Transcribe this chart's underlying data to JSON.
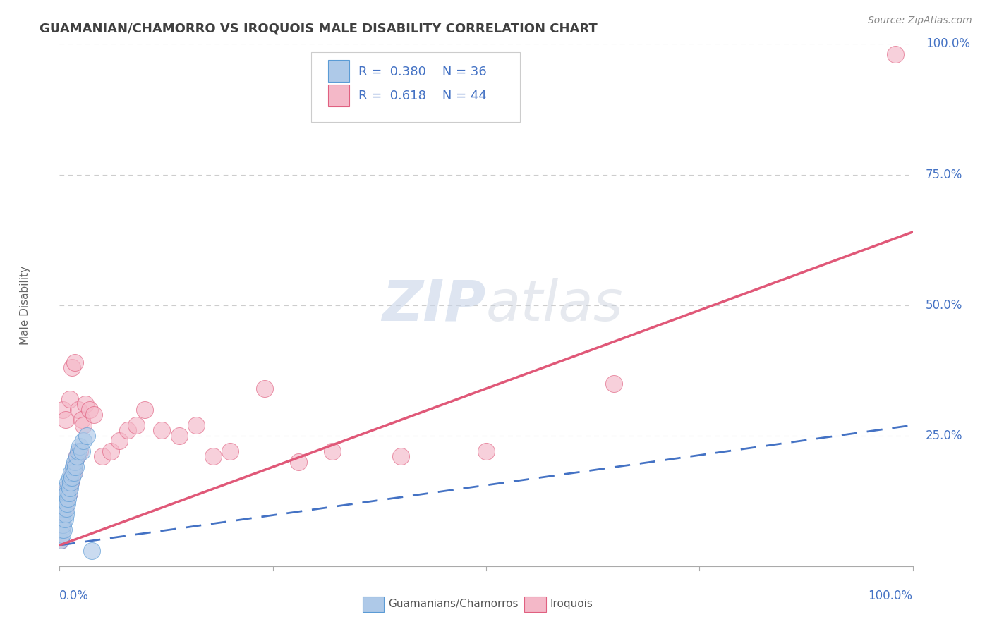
{
  "title": "GUAMANIAN/CHAMORRO VS IROQUOIS MALE DISABILITY CORRELATION CHART",
  "source_text": "Source: ZipAtlas.com",
  "ylabel": "Male Disability",
  "ylabel_right_ticks": [
    "100.0%",
    "75.0%",
    "50.0%",
    "25.0%"
  ],
  "ylabel_right_vals": [
    1.0,
    0.75,
    0.5,
    0.25
  ],
  "legend_labels": [
    "Guamanians/Chamorros",
    "Iroquois"
  ],
  "guamanian_color": "#aec9e8",
  "guamanian_edge_color": "#5b9bd5",
  "iroquois_color": "#f4b8c8",
  "iroquois_edge_color": "#e06080",
  "guamanian_line_color": "#4472c4",
  "iroquois_line_color": "#e05878",
  "background_color": "#ffffff",
  "grid_color": "#b8b8b8",
  "title_color": "#404040",
  "axis_label_color": "#4472c4",
  "watermark_text": "ZIPatlas",
  "watermark_color": "#dde5f0",
  "guamanian_x": [
    0.001,
    0.002,
    0.002,
    0.003,
    0.003,
    0.004,
    0.004,
    0.005,
    0.005,
    0.006,
    0.006,
    0.007,
    0.007,
    0.008,
    0.008,
    0.009,
    0.009,
    0.01,
    0.01,
    0.011,
    0.012,
    0.012,
    0.013,
    0.014,
    0.015,
    0.016,
    0.017,
    0.018,
    0.019,
    0.02,
    0.022,
    0.024,
    0.026,
    0.028,
    0.032,
    0.038
  ],
  "guamanian_y": [
    0.05,
    0.07,
    0.09,
    0.06,
    0.1,
    0.08,
    0.11,
    0.07,
    0.12,
    0.09,
    0.13,
    0.1,
    0.14,
    0.11,
    0.15,
    0.12,
    0.14,
    0.13,
    0.16,
    0.14,
    0.15,
    0.17,
    0.16,
    0.18,
    0.17,
    0.19,
    0.18,
    0.2,
    0.19,
    0.21,
    0.22,
    0.23,
    0.22,
    0.24,
    0.25,
    0.03
  ],
  "iroquois_x": [
    0.001,
    0.002,
    0.003,
    0.004,
    0.005,
    0.006,
    0.007,
    0.008,
    0.009,
    0.01,
    0.011,
    0.012,
    0.013,
    0.014,
    0.015,
    0.016,
    0.017,
    0.018,
    0.02,
    0.022,
    0.024,
    0.026,
    0.028,
    0.03,
    0.035,
    0.04,
    0.05,
    0.06,
    0.07,
    0.08,
    0.09,
    0.1,
    0.12,
    0.14,
    0.16,
    0.18,
    0.2,
    0.24,
    0.28,
    0.32,
    0.4,
    0.5,
    0.65,
    0.98
  ],
  "iroquois_y": [
    0.05,
    0.08,
    0.1,
    0.3,
    0.12,
    0.11,
    0.28,
    0.13,
    0.14,
    0.15,
    0.14,
    0.32,
    0.16,
    0.17,
    0.38,
    0.18,
    0.19,
    0.39,
    0.21,
    0.3,
    0.22,
    0.28,
    0.27,
    0.31,
    0.3,
    0.29,
    0.21,
    0.22,
    0.24,
    0.26,
    0.27,
    0.3,
    0.26,
    0.25,
    0.27,
    0.21,
    0.22,
    0.34,
    0.2,
    0.22,
    0.21,
    0.22,
    0.35,
    0.98
  ],
  "xlim": [
    0.0,
    1.0
  ],
  "ylim": [
    0.0,
    1.0
  ],
  "guam_line_intercept": 0.04,
  "guam_line_slope": 0.23,
  "iroq_line_intercept": 0.04,
  "iroq_line_slope": 0.6
}
